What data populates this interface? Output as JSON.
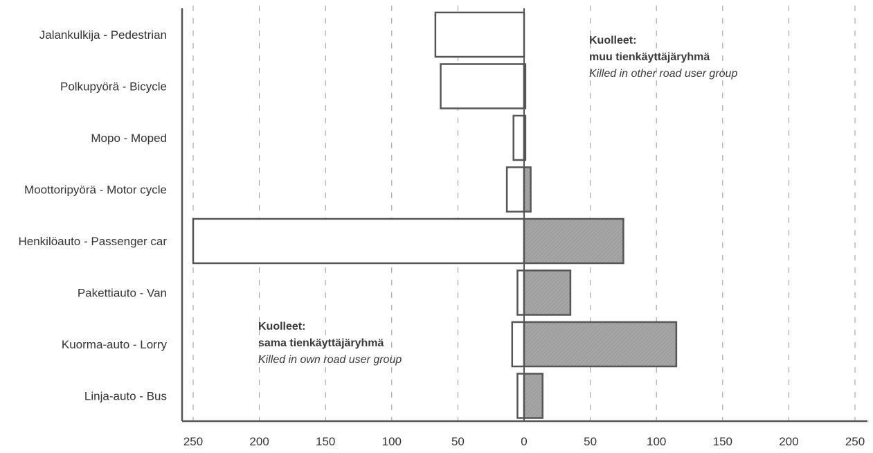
{
  "chart_data": {
    "type": "bar",
    "orientation": "horizontal",
    "layout": "back-to-back",
    "categories": [
      "Jalankulkija - Pedestrian",
      "Polkupyörä - Bicycle",
      "Mopo - Moped",
      "Moottoripyörä - Motor cycle",
      "Henkilöauto - Passenger car",
      "Pakettiauto - Van",
      "Kuorma-auto - Lorry",
      "Linja-auto - Bus"
    ],
    "series": [
      {
        "values": [
          67,
          63,
          8,
          13,
          250,
          5,
          9,
          5
        ],
        "direction": "left",
        "fill": "#ffffff",
        "stroke": "#555555"
      },
      {
        "values": [
          0,
          1,
          1,
          5,
          75,
          35,
          115,
          14
        ],
        "direction": "right",
        "fill": "#a6a6a6",
        "stroke": "#555555"
      }
    ],
    "annotations": [
      {
        "lines": [
          "Kuolleet:",
          "muu tienkäyttäjäryhmä",
          "Killed in other road user  group"
        ],
        "placement": "top-right"
      },
      {
        "lines": [
          "Kuolleet:",
          "sama tienkäyttäjäryhmä",
          "Killed in own road user  group"
        ],
        "placement": "bottom-center"
      }
    ],
    "xlim": [
      -260,
      260
    ],
    "xticks": [
      -250,
      -200,
      -150,
      -100,
      -50,
      0,
      50,
      100,
      150,
      200,
      250
    ],
    "xtick_labels": [
      "250",
      "200",
      "150",
      "100",
      "50",
      "0",
      "50",
      "100",
      "150",
      "200",
      "250"
    ],
    "title": "",
    "xlabel": "",
    "ylabel": "",
    "grid": "vertical-dashed",
    "colors": {
      "axis": "#555555",
      "grid": "#9a9a9a",
      "text": "#333333"
    }
  }
}
